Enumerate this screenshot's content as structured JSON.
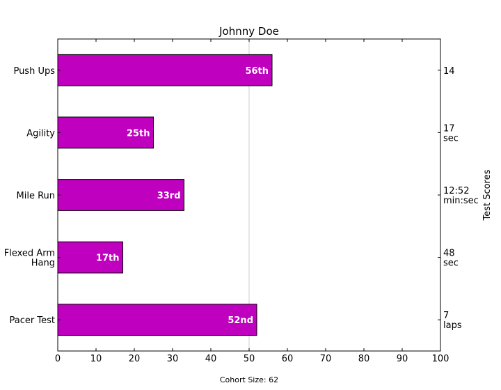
{
  "chart_data": {
    "type": "bar",
    "orientation": "horizontal",
    "title": "Johnny Doe",
    "categories": [
      "Pacer Test",
      "Flexed Arm\nHang",
      "Mile Run",
      "Agility",
      "Push Ups"
    ],
    "values": [
      52,
      17,
      33,
      25,
      56
    ],
    "bar_labels": [
      "52nd",
      "17th",
      "33rd",
      "25th",
      "56th"
    ],
    "right_axis_label": "Test Scores",
    "right_tick_labels": [
      "7\nlaps",
      "48\nsec",
      "12:52\nmin:sec",
      "17\nsec",
      "14"
    ],
    "xlim": [
      0,
      100
    ],
    "x_ticks": [
      0,
      10,
      20,
      30,
      40,
      50,
      60,
      70,
      80,
      90,
      100
    ],
    "reference_line": 50,
    "footer": "Cohort Size: 62",
    "colors": {
      "bar": "#bf00bf",
      "bar_edge": "#000000",
      "bar_label": "#ffffff",
      "reference_line": "#cccccc"
    }
  }
}
